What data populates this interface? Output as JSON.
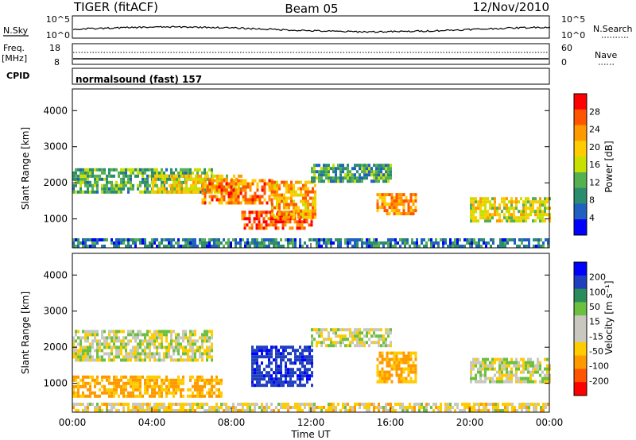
{
  "header": {
    "radar": "TIGER (fitACF)",
    "beam": "Beam 05",
    "date": "12/Nov/2010"
  },
  "strips": {
    "nsky_label": "N.Sky",
    "nsky_top": "10^5",
    "nsky_bottom": "10^0",
    "nsearch_label": "N.Search",
    "nsearch_top": "10^5",
    "nsearch_bottom": "10^0",
    "freq_label": "Freq.",
    "freq_unit": "[MHz]",
    "freq_top": "18",
    "freq_bottom": "8",
    "nave_label": "Nave",
    "nave_top": "60",
    "nave_bottom": "0",
    "cpid_label": "CPID",
    "cpid_text": "normalsound (fast) 157"
  },
  "chart_data": [
    {
      "type": "heatmap",
      "name": "power",
      "ylabel": "Slant Range [km]",
      "xlabel": "Time UT",
      "x_ticks": [
        "00:00",
        "04:00",
        "08:00",
        "12:00",
        "16:00",
        "20:00",
        "00:00"
      ],
      "y_ticks": [
        1000,
        2000,
        3000,
        4000
      ],
      "ylim": [
        200,
        4600
      ],
      "colorbar_label": "Power [dB]",
      "colorbar_ticks": [
        "28",
        "24",
        "20",
        "16",
        "12",
        "8",
        "4"
      ],
      "colorbar_colors": [
        "#ff0000",
        "#ff5500",
        "#ff9900",
        "#ffcc00",
        "#c8e000",
        "#55b050",
        "#2b8c6e",
        "#2060c0",
        "#0000ff"
      ],
      "bands": [
        {
          "t0": 0.0,
          "t1": 7.0,
          "r0": 1700,
          "r1": 2400,
          "level": 0.35
        },
        {
          "t0": 4.0,
          "t1": 8.5,
          "r0": 1700,
          "r1": 2200,
          "level": 0.6
        },
        {
          "t0": 6.5,
          "t1": 10.0,
          "r0": 1400,
          "r1": 2100,
          "level": 0.8
        },
        {
          "t0": 8.5,
          "t1": 12.0,
          "r0": 700,
          "r1": 1200,
          "level": 0.9
        },
        {
          "t0": 10.0,
          "t1": 12.2,
          "r0": 1000,
          "r1": 2000,
          "level": 0.7
        },
        {
          "t0": 12.0,
          "t1": 16.0,
          "r0": 2000,
          "r1": 2500,
          "level": 0.3
        },
        {
          "t0": 15.3,
          "t1": 17.3,
          "r0": 1100,
          "r1": 1700,
          "level": 0.75
        },
        {
          "t0": 20.0,
          "t1": 24.0,
          "r0": 900,
          "r1": 1600,
          "level": 0.55
        },
        {
          "t0": 0.0,
          "t1": 24.0,
          "r0": 200,
          "r1": 450,
          "level": 0.2
        }
      ]
    },
    {
      "type": "heatmap",
      "name": "velocity",
      "ylabel": "Slant Range [km]",
      "xlabel": "Time UT",
      "x_ticks": [
        "00:00",
        "04:00",
        "08:00",
        "12:00",
        "16:00",
        "20:00",
        "00:00"
      ],
      "y_ticks": [
        1000,
        2000,
        3000,
        4000
      ],
      "ylim": [
        200,
        4600
      ],
      "colorbar_label": "Velocity [m s⁻¹]",
      "colorbar_ticks": [
        "200",
        "100",
        "50",
        "15",
        "-15",
        "-50",
        "-100",
        "-200"
      ],
      "colorbar_colors": [
        "#0000ff",
        "#1f3fbf",
        "#2a8c5a",
        "#6cc040",
        "#c8c8c0",
        "#c8c8c0",
        "#ffcc00",
        "#ff9900",
        "#ff5500",
        "#ff0000"
      ],
      "bands": [
        {
          "t0": 0.0,
          "t1": 7.0,
          "r0": 1600,
          "r1": 2400,
          "vel": 0
        },
        {
          "t0": 0.0,
          "t1": 7.5,
          "r0": 600,
          "r1": 1200,
          "vel": -60
        },
        {
          "t0": 9.0,
          "t1": 12.0,
          "r0": 900,
          "r1": 2000,
          "vel": 180
        },
        {
          "t0": 12.0,
          "t1": 16.0,
          "r0": 2000,
          "r1": 2500,
          "vel": 0
        },
        {
          "t0": 15.3,
          "t1": 17.3,
          "r0": 1000,
          "r1": 1800,
          "vel": -60
        },
        {
          "t0": 20.0,
          "t1": 24.0,
          "r0": 1000,
          "r1": 1700,
          "vel": 0
        },
        {
          "t0": 0.0,
          "t1": 24.0,
          "r0": 200,
          "r1": 450,
          "vel": -20
        }
      ]
    }
  ],
  "axis": {
    "xlabel": "Time UT"
  }
}
